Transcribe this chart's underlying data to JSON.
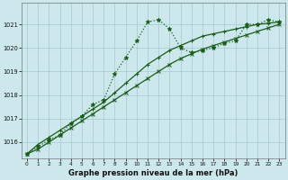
{
  "title": "Graphe pression niveau de la mer (hPa)",
  "background_color": "#cce8ec",
  "grid_color": "#aacdd4",
  "line_color": "#1a5c1a",
  "xlim": [
    -0.5,
    23.5
  ],
  "ylim": [
    1015.3,
    1021.9
  ],
  "xticks": [
    0,
    1,
    2,
    3,
    4,
    5,
    6,
    7,
    8,
    9,
    10,
    11,
    12,
    13,
    14,
    15,
    16,
    17,
    18,
    19,
    20,
    21,
    22,
    23
  ],
  "yticks": [
    1016,
    1017,
    1018,
    1019,
    1020,
    1021
  ],
  "series1": [
    1015.5,
    1015.8,
    1016.1,
    1016.3,
    1016.8,
    1017.1,
    1017.6,
    1017.8,
    1018.9,
    1019.6,
    1020.3,
    1021.1,
    1021.2,
    1020.8,
    1020.0,
    1019.8,
    1019.9,
    1020.0,
    1020.2,
    1020.3,
    1021.0,
    1021.0,
    1021.2,
    1021.1
  ],
  "series2": [
    1015.5,
    1015.9,
    1016.2,
    1016.5,
    1016.8,
    1017.1,
    1017.4,
    1017.7,
    1018.1,
    1018.5,
    1018.9,
    1019.3,
    1019.6,
    1019.9,
    1020.1,
    1020.3,
    1020.5,
    1020.6,
    1020.7,
    1020.8,
    1020.9,
    1021.0,
    1021.05,
    1021.1
  ],
  "series3": [
    1015.5,
    1015.7,
    1016.0,
    1016.3,
    1016.6,
    1016.9,
    1017.2,
    1017.5,
    1017.8,
    1018.1,
    1018.4,
    1018.7,
    1019.0,
    1019.3,
    1019.55,
    1019.75,
    1019.95,
    1020.1,
    1020.25,
    1020.4,
    1020.55,
    1020.7,
    1020.85,
    1021.0
  ]
}
